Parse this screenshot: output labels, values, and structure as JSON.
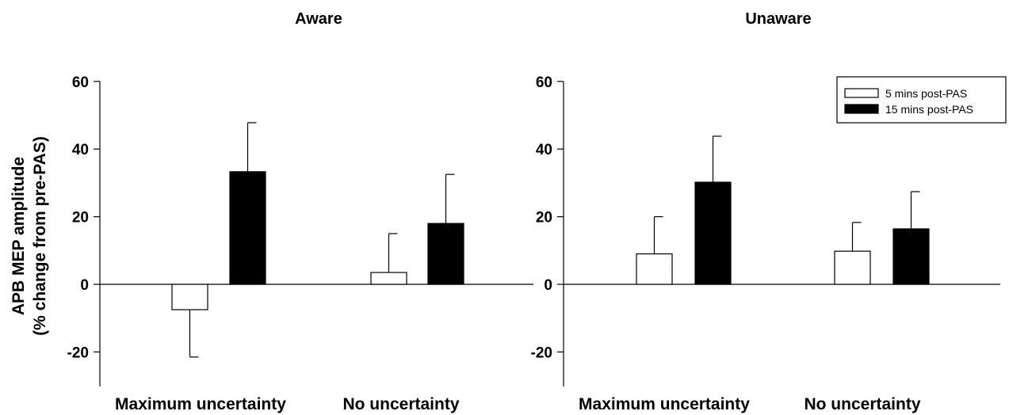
{
  "ylabel_line1": "APB MEP amplitude",
  "ylabel_line2": "(% change from pre-PAS)",
  "legend": {
    "entries": [
      {
        "label": "5 mins post-PAS",
        "color": "#ffffff"
      },
      {
        "label": "15 mins post-PAS",
        "color": "#000000"
      }
    ],
    "placement": "top-right"
  },
  "chart_data": [
    {
      "type": "bar",
      "title": "Aware",
      "categories": [
        "Maximum uncertainty",
        "No uncertainty"
      ],
      "series": [
        {
          "name": "5 mins post-PAS",
          "values": [
            -7.5,
            3.5
          ],
          "errors": [
            14,
            11.5
          ],
          "color": "#ffffff"
        },
        {
          "name": "15 mins post-PAS",
          "values": [
            33.3,
            18
          ],
          "errors": [
            14.5,
            14.5
          ],
          "color": "#000000"
        }
      ],
      "ylabel": "APB MEP amplitude (% change from pre-PAS)",
      "ylim": [
        -30,
        60
      ],
      "yticks": [
        "60",
        "40",
        "20",
        "0",
        "-20"
      ],
      "grid": false
    },
    {
      "type": "bar",
      "title": "Unaware",
      "categories": [
        "Maximum uncertainty",
        "No uncertainty"
      ],
      "series": [
        {
          "name": "5 mins post-PAS",
          "values": [
            9,
            9.8
          ],
          "errors": [
            11,
            8.5
          ],
          "color": "#ffffff"
        },
        {
          "name": "15 mins post-PAS",
          "values": [
            30.2,
            16.4
          ],
          "errors": [
            13.6,
            11
          ],
          "color": "#000000"
        }
      ],
      "ylim": [
        -30,
        60
      ],
      "yticks": [
        "60",
        "40",
        "20",
        "0",
        "-20"
      ],
      "grid": false
    }
  ]
}
